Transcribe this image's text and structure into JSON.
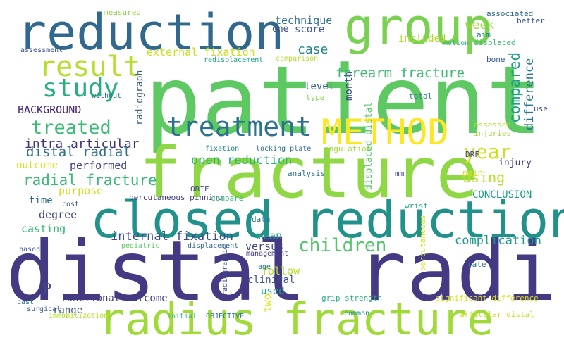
{
  "words": [
    {
      "text": "patient",
      "color": "#5ec962"
    },
    {
      "text": "distal radius",
      "color": "#443983"
    },
    {
      "text": "fracture",
      "color": "#8fd744"
    },
    {
      "text": "closed reduction",
      "color": "#21918c"
    },
    {
      "text": "reduction",
      "color": "#31688e"
    },
    {
      "text": "group",
      "color": "#7ad151"
    },
    {
      "text": "radius fracture",
      "color": "#a0da39"
    },
    {
      "text": "METHOD",
      "color": "#fde725"
    },
    {
      "text": "treatment",
      "color": "#2c728e"
    },
    {
      "text": "result",
      "color": "#b5de2b"
    },
    {
      "text": "study",
      "color": "#28ae80"
    },
    {
      "text": "treated",
      "color": "#3bbb75"
    },
    {
      "text": "year",
      "color": "#d0e11c"
    },
    {
      "text": "children",
      "color": "#52c569"
    },
    {
      "text": "forearm fracture",
      "color": "#3dbc74"
    },
    {
      "text": "compared",
      "color": "#1f9e89"
    },
    {
      "text": "distal radial",
      "color": "#2e6f8e"
    },
    {
      "text": "radial fracture",
      "color": "#3aba76"
    },
    {
      "text": "intra articular",
      "color": "#46337e"
    },
    {
      "text": "internal fixation",
      "color": "#3e4c8a"
    },
    {
      "text": "open reduction",
      "color": "#29af7f"
    },
    {
      "text": "external fixation",
      "color": "#c8e020"
    },
    {
      "text": "case",
      "color": "#25858e"
    },
    {
      "text": "using",
      "color": "#b8de29"
    },
    {
      "text": "complication",
      "color": "#1f9a8a"
    },
    {
      "text": "difference",
      "color": "#2a768e"
    },
    {
      "text": "technique",
      "color": "#2c718e"
    },
    {
      "text": "week",
      "color": "#9dd93b"
    },
    {
      "text": "score",
      "color": "#38588c"
    },
    {
      "text": "one",
      "color": "#3e4989"
    },
    {
      "text": "included",
      "color": "#b2dd2d"
    },
    {
      "text": "BACKGROUND",
      "color": "#482576"
    },
    {
      "text": "level",
      "color": "#365d8d"
    },
    {
      "text": "radiograph",
      "color": "#375a8c"
    },
    {
      "text": "month",
      "color": "#3f4889"
    },
    {
      "text": "performed",
      "color": "#424186"
    },
    {
      "text": "outcome",
      "color": "#dde318"
    },
    {
      "text": "purpose",
      "color": "#cae11f"
    },
    {
      "text": "time",
      "color": "#2f6b8e"
    },
    {
      "text": "degree",
      "color": "#3f4788"
    },
    {
      "text": "casting",
      "color": "#34b679"
    },
    {
      "text": "mean",
      "color": "#1fa287"
    },
    {
      "text": "versus",
      "color": "#404588"
    },
    {
      "text": "CONCLUSION",
      "color": "#1e9c89"
    },
    {
      "text": "injury",
      "color": "#453882"
    },
    {
      "text": "pain",
      "color": "#d8e219"
    },
    {
      "text": "follow",
      "color": "#bade28"
    },
    {
      "text": "clinical",
      "color": "#3b528b"
    },
    {
      "text": "used",
      "color": "#21a685"
    },
    {
      "text": "P",
      "color": "#3e4a89"
    },
    {
      "text": "functional outcome",
      "color": "#433e85"
    },
    {
      "text": "range",
      "color": "#39568c"
    },
    {
      "text": "two",
      "color": "#dde318"
    },
    {
      "text": "displaced distal",
      "color": "#56c667"
    },
    {
      "text": "measured",
      "color": "#8bd646"
    },
    {
      "text": "associated",
      "color": "#31688e"
    },
    {
      "text": "better",
      "color": "#39568c"
    },
    {
      "text": "aim",
      "color": "#25858e"
    },
    {
      "text": "motion",
      "color": "#29af7f"
    },
    {
      "text": "displaced",
      "color": "#3aba76"
    },
    {
      "text": "assessment",
      "color": "#3b528b"
    },
    {
      "text": "redisplacement",
      "color": "#1f9e89"
    },
    {
      "text": "comparison",
      "color": "#b5de2b"
    },
    {
      "text": "bone",
      "color": "#375a8c"
    },
    {
      "text": "without",
      "color": "#2c718e"
    },
    {
      "text": "type",
      "color": "#7ad151"
    },
    {
      "text": "total",
      "color": "#2a768e"
    },
    {
      "text": "use",
      "color": "#3e4c8a"
    },
    {
      "text": "assessed",
      "color": "#bade28"
    },
    {
      "text": "injuries",
      "color": "#9dd93b"
    },
    {
      "text": "fixation",
      "color": "#25858e"
    },
    {
      "text": "locking plate",
      "color": "#2e6f8e"
    },
    {
      "text": "angulation",
      "color": "#a0da39"
    },
    {
      "text": "DRF",
      "color": "#424186"
    },
    {
      "text": "analysis",
      "color": "#2c718e"
    },
    {
      "text": "mm",
      "color": "#3e4989"
    },
    {
      "text": "wrist",
      "color": "#21a685"
    },
    {
      "text": "percutaneous pinning",
      "color": "#443983"
    },
    {
      "text": "ORIF",
      "color": "#3e4989"
    },
    {
      "text": "cost",
      "color": "#3b528b"
    },
    {
      "text": "compare",
      "color": "#3aba76"
    },
    {
      "text": "data",
      "color": "#2c718e"
    },
    {
      "text": "percutaneous",
      "color": "#d8e219"
    },
    {
      "text": "pediatric",
      "color": "#5ec962"
    },
    {
      "text": "displacement",
      "color": "#31688e"
    },
    {
      "text": "management",
      "color": "#433e85"
    },
    {
      "text": "based",
      "color": "#38588c"
    },
    {
      "text": "age",
      "color": "#2a768e"
    },
    {
      "text": "rate",
      "color": "#2c728e"
    },
    {
      "text": "radiographic",
      "color": "#3e4c8a"
    },
    {
      "text": "grip strength",
      "color": "#28ae80"
    },
    {
      "text": "significant difference",
      "color": "#dde318"
    },
    {
      "text": "cast",
      "color": "#2c718e"
    },
    {
      "text": "surgical",
      "color": "#365d8d"
    },
    {
      "text": "immobilization",
      "color": "#bade28"
    },
    {
      "text": "initial",
      "color": "#3aba76"
    },
    {
      "text": "OBJECTIVE",
      "color": "#2a768e"
    },
    {
      "text": "common",
      "color": "#21918c"
    },
    {
      "text": "articular distal",
      "color": "#c8e020"
    }
  ]
}
